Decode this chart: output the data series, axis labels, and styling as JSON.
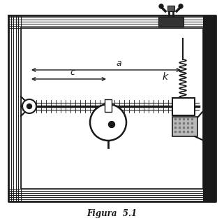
{
  "bg_color": "#ffffff",
  "line_color": "#1a1a1a",
  "caption": "Figura  5.1",
  "label_a": "a",
  "label_c": "c",
  "label_k": "k",
  "fig_width": 3.21,
  "fig_height": 3.16,
  "dpi": 100
}
